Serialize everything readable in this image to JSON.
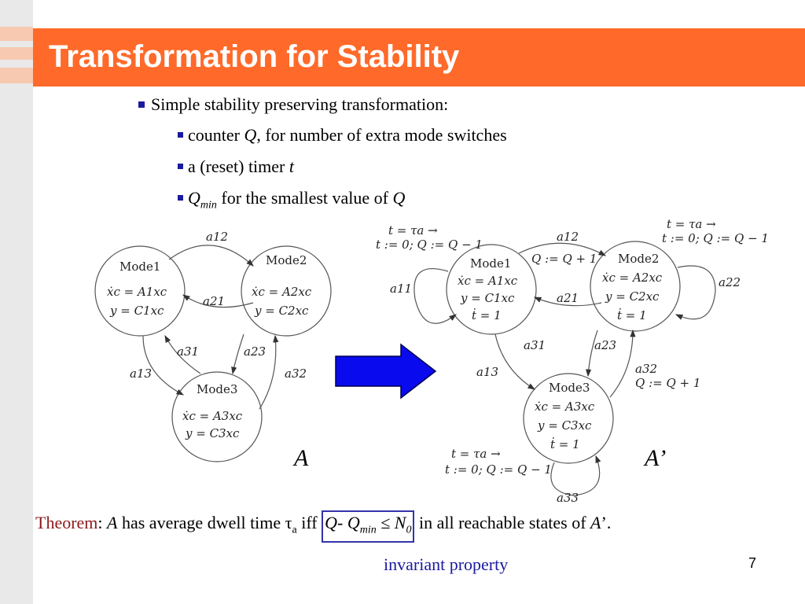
{
  "slide": {
    "title": "Transformation for Stability",
    "bullets": {
      "main": "Simple stability preserving transformation:",
      "sub1_pre": "counter ",
      "sub1_var": "Q",
      "sub1_post": ", for number of extra mode switches",
      "sub2_pre": "a (reset) timer ",
      "sub2_var": "t",
      "sub3_var": "Q",
      "sub3_sub": "min",
      "sub3_post": " for the smallest value of ",
      "sub3_var2": "Q"
    },
    "label_A": "A",
    "label_A_prime": "A’",
    "theorem": {
      "keyword": "Theorem",
      "colon": ":",
      "var_A": "A",
      "text1": " has average dwell time τ",
      "tau_sub": "a",
      "text2": " iff ",
      "box_q": "Q",
      "box_minus": "- Q",
      "box_min": "min",
      "box_le": " ≤ N",
      "box_zero": "0",
      "text3": " in all reachable states of ",
      "var_A2": "A",
      "text4": "’."
    },
    "note": "invariant property",
    "page_number": "7"
  },
  "diagram_A": {
    "modes": [
      {
        "name": "Mode1",
        "eq1": "ẋc = A1xc",
        "eq2": "y = C1xc"
      },
      {
        "name": "Mode2",
        "eq1": "ẋc = A2xc",
        "eq2": "y = C2xc"
      },
      {
        "name": "Mode3",
        "eq1": "ẋc = A3xc",
        "eq2": "y = C3xc"
      }
    ],
    "edges": [
      "a12",
      "a21",
      "a31",
      "a23",
      "a13",
      "a32"
    ]
  },
  "diagram_A_prime": {
    "modes": [
      {
        "name": "Mode1",
        "eq1": "ẋc = A1xc",
        "eq2": "y = C1xc",
        "eq3": "ṫ = 1"
      },
      {
        "name": "Mode2",
        "eq1": "ẋc = A2xc",
        "eq2": "y = C2xc",
        "eq3": "ṫ = 1"
      },
      {
        "name": "Mode3",
        "eq1": "ẋc = A3xc",
        "eq2": "y = C3xc",
        "eq3": "ṫ = 1"
      }
    ],
    "edges": [
      "a12",
      "a21",
      "a11",
      "a22",
      "a31",
      "a23",
      "a13",
      "a32",
      "a33"
    ],
    "guards": {
      "self1_l1": "t = τa →",
      "self1_l2": "t := 0; Q := Q − 1",
      "self2_l1": "t = τa →",
      "self2_l2": "t := 0; Q := Q − 1",
      "self3_l1": "t = τa →",
      "self3_l2": "t := 0; Q := Q − 1",
      "a12_reset": "Q := Q + 1",
      "a32_reset": "Q := Q + 1"
    }
  },
  "colors": {
    "title_bar": "#ff6a2a",
    "arrow": "#0000ee",
    "theorem_keyword": "#8b1a1a",
    "note": "#1a1aa0"
  }
}
